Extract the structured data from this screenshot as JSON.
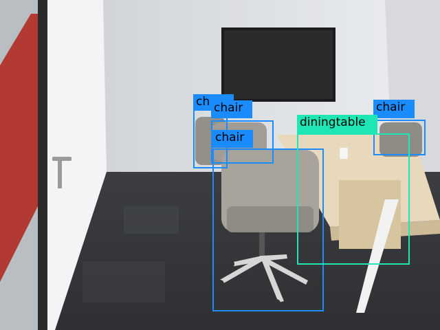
{
  "detections": [
    {
      "label": "ch",
      "color": "#1a8cff"
    },
    {
      "label": "chair",
      "color": "#1a8cff"
    },
    {
      "label": "chair",
      "color": "#1a8cff"
    },
    {
      "label": "chair",
      "color": "#1a8cff"
    },
    {
      "label": "diningtable",
      "color": "#1ee6b4"
    }
  ]
}
